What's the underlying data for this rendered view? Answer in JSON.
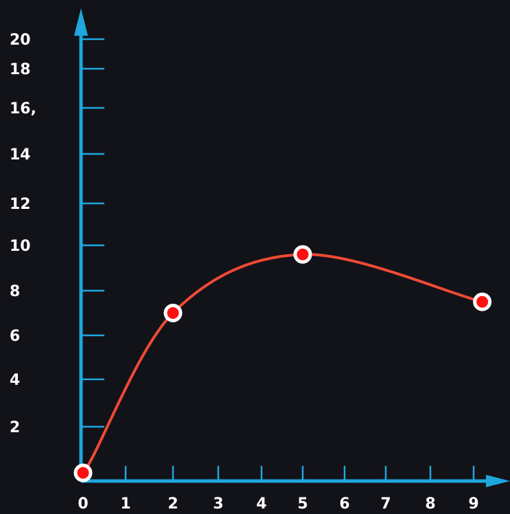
{
  "colors": {
    "background": "#121219",
    "axis": "#1ea7dc",
    "curve": "#ef4a35",
    "point_fill": "#ff1010",
    "point_ring": "#ffffff",
    "label": "#ffffff"
  },
  "chart_data": {
    "type": "line",
    "title": "",
    "xlabel": "",
    "ylabel": "",
    "xlim": [
      0,
      9
    ],
    "ylim": [
      0,
      20
    ],
    "grid": false,
    "x_ticks": [
      0,
      1,
      2,
      3,
      4,
      5,
      6,
      7,
      8,
      9
    ],
    "x_tick_labels": [
      "0",
      "1",
      "2",
      "3",
      "4",
      "5",
      "6",
      "7",
      "8",
      "9"
    ],
    "y_ticks": [
      2,
      4,
      6,
      8,
      10,
      12,
      14,
      16,
      18,
      20
    ],
    "y_tick_labels": [
      "2",
      "4",
      "6",
      "8",
      "10",
      "12",
      "14",
      "16,",
      "18",
      "20"
    ],
    "series": [
      {
        "points": [
          {
            "x": 0,
            "y": 0.3
          },
          {
            "x": 2,
            "y": 7
          },
          {
            "x": 5,
            "y": 9.6
          },
          {
            "x": 9.2,
            "y": 7.5
          }
        ]
      }
    ]
  }
}
